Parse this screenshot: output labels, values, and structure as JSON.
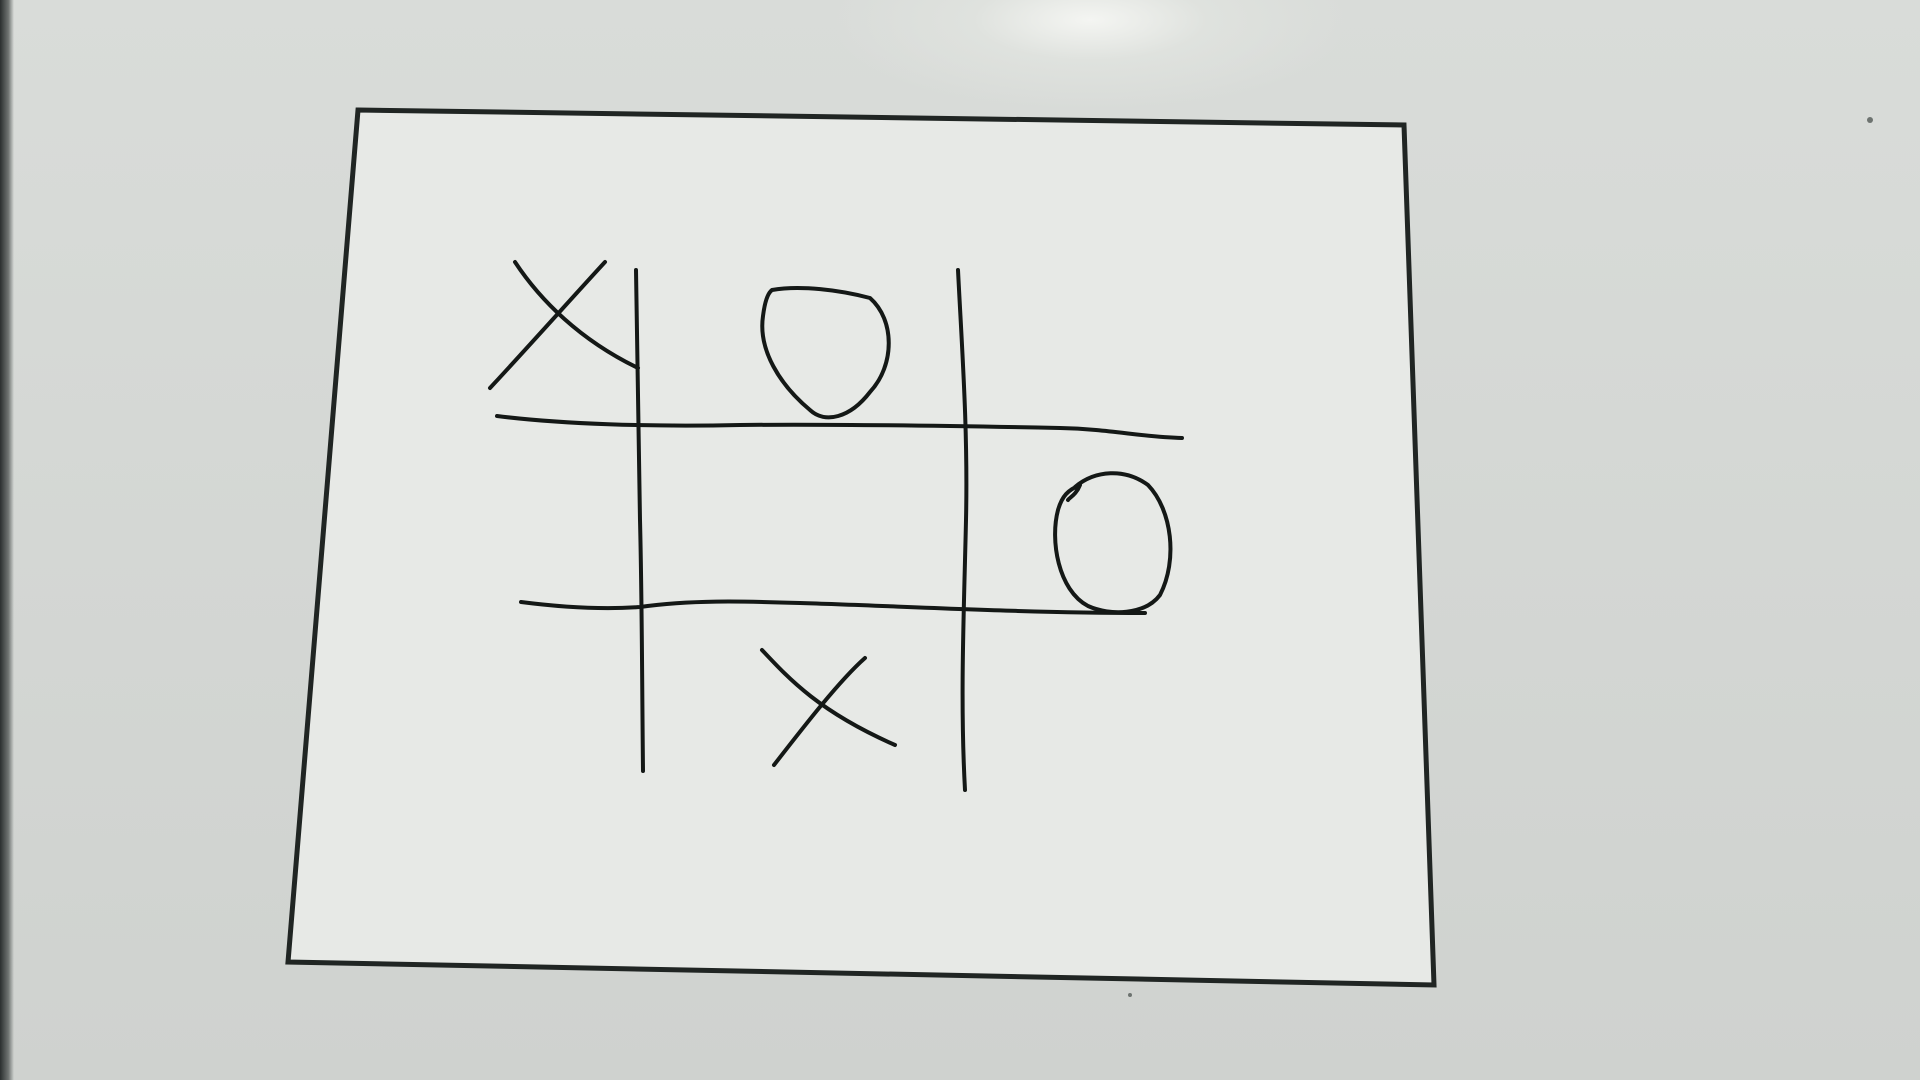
{
  "game": {
    "name": "tic-tac-toe",
    "board": [
      [
        "X",
        "O",
        ""
      ],
      [
        "",
        "",
        "O"
      ],
      [
        "",
        "X",
        ""
      ]
    ]
  },
  "colors": {
    "ink": "#141816",
    "frame": "#202523",
    "paper": "#e7e9e6",
    "background": "#d6d9d6"
  }
}
